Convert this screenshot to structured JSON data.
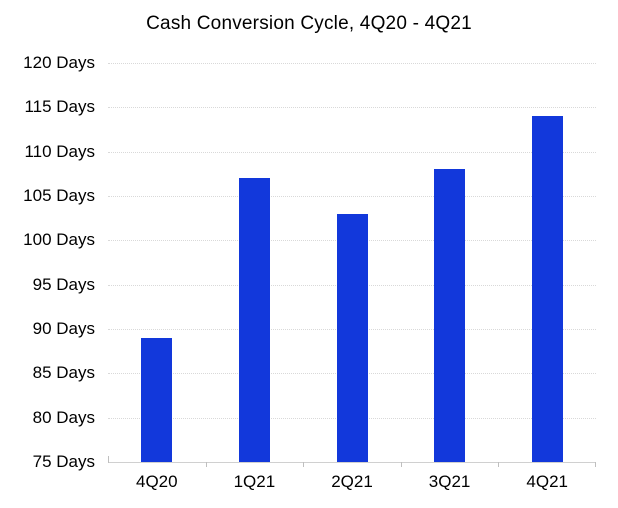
{
  "chart_data": {
    "type": "bar",
    "title": "Cash Conversion Cycle, 4Q20 - 4Q21",
    "categories": [
      "4Q20",
      "1Q21",
      "2Q21",
      "3Q21",
      "4Q21"
    ],
    "values": [
      89,
      107,
      103,
      108,
      114
    ],
    "unit": "Days",
    "xlabel": "",
    "ylabel": "",
    "ylim": [
      75,
      120
    ],
    "ystep": 5,
    "y_tick_labels": [
      "120 Days",
      "115 Days",
      "110 Days",
      "105 Days",
      "100 Days",
      "95 Days",
      "90 Days",
      "85 Days",
      "80 Days",
      "75 Days"
    ],
    "grid": true,
    "legend": false,
    "bar_color": "#1238DB",
    "gridline_color": "#D9D9D9",
    "axis_color": "#D0D0D0",
    "tick_color": "#BFBFBF",
    "text_color": "#000000"
  }
}
